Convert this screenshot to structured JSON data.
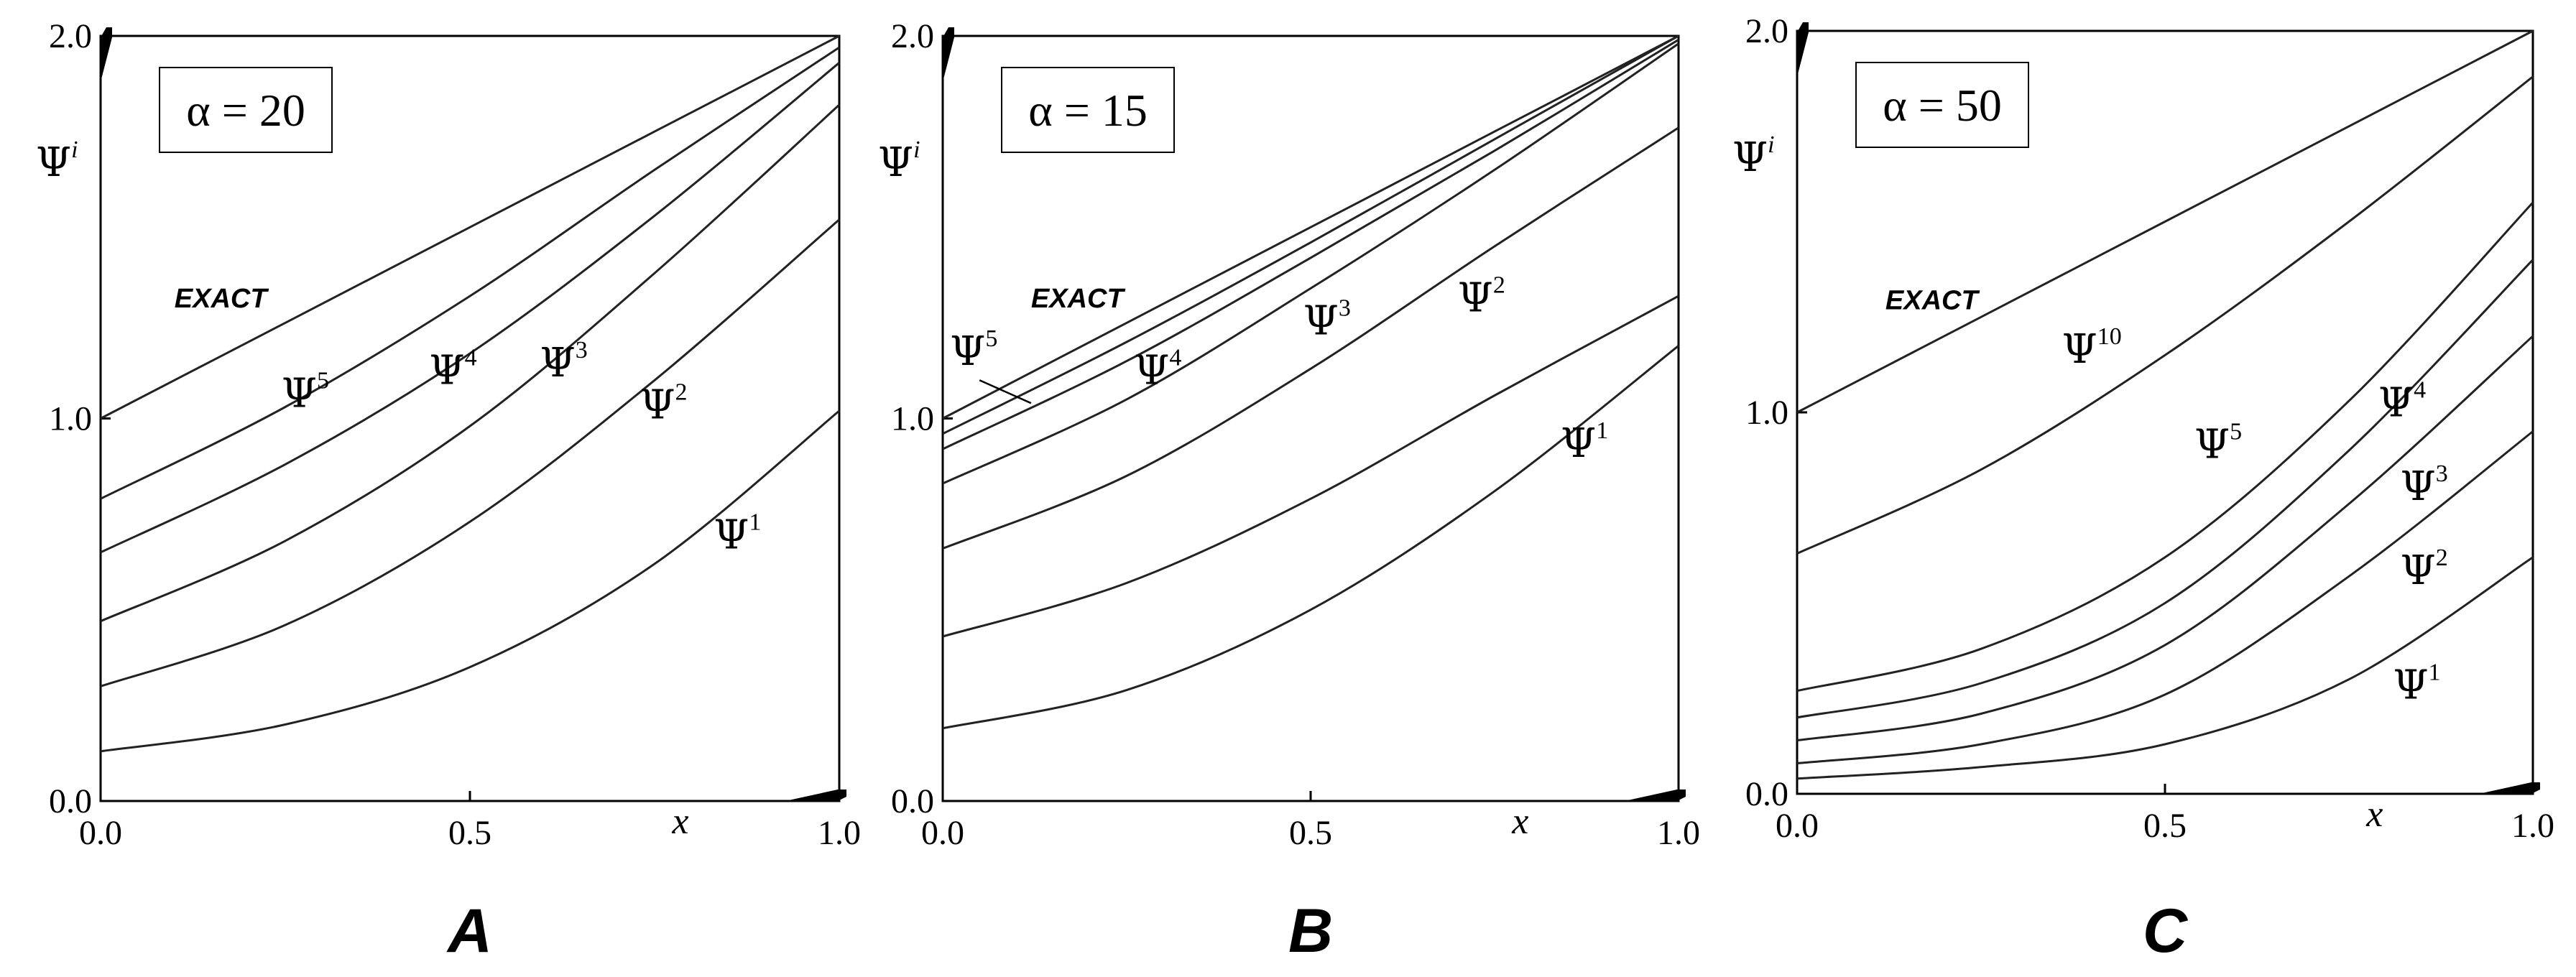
{
  "chart_data": [
    {
      "type": "line",
      "panel_label": "A",
      "annotation": "α = 20",
      "xlabel": "x",
      "ylabel": {
        "base": "Ψ",
        "sup": "i"
      },
      "xlim": [
        0,
        1
      ],
      "ylim": [
        0,
        2
      ],
      "xticks": [
        "0.0",
        "0.5",
        "1.0"
      ],
      "yticks": [
        "0.0",
        "1.0",
        "2.0"
      ],
      "series": [
        {
          "name": "EXACT",
          "x": [
            0,
            0.25,
            0.5,
            0.75,
            1
          ],
          "y": [
            1.0,
            1.25,
            1.5,
            1.75,
            2.0
          ]
        },
        {
          "name": "Ψ5",
          "x": [
            0,
            0.25,
            0.5,
            0.75,
            1
          ],
          "y": [
            0.79,
            1.03,
            1.32,
            1.65,
            1.97
          ]
        },
        {
          "name": "Ψ4",
          "x": [
            0,
            0.25,
            0.5,
            0.75,
            1
          ],
          "y": [
            0.65,
            0.88,
            1.17,
            1.53,
            1.93
          ]
        },
        {
          "name": "Ψ3",
          "x": [
            0,
            0.25,
            0.5,
            0.75,
            1
          ],
          "y": [
            0.47,
            0.68,
            0.98,
            1.38,
            1.82
          ]
        },
        {
          "name": "Ψ2",
          "x": [
            0,
            0.25,
            0.5,
            0.75,
            1
          ],
          "y": [
            0.3,
            0.46,
            0.73,
            1.1,
            1.52
          ]
        },
        {
          "name": "Ψ1",
          "x": [
            0,
            0.25,
            0.5,
            0.75,
            1
          ],
          "y": [
            0.13,
            0.2,
            0.35,
            0.62,
            1.02
          ]
        }
      ],
      "labels": [
        {
          "text": "EXACT",
          "kind": "exact",
          "at": [
            0.1,
            1.29
          ]
        },
        {
          "base": "Ψ",
          "sup": "5",
          "at": [
            0.245,
            1.03
          ]
        },
        {
          "base": "Ψ",
          "sup": "4",
          "at": [
            0.445,
            1.09
          ]
        },
        {
          "base": "Ψ",
          "sup": "3",
          "at": [
            0.595,
            1.11
          ]
        },
        {
          "base": "Ψ",
          "sup": "2",
          "at": [
            0.73,
            1.0
          ]
        },
        {
          "base": "Ψ",
          "sup": "1",
          "at": [
            0.83,
            0.66
          ]
        }
      ]
    },
    {
      "type": "line",
      "panel_label": "B",
      "annotation": "α = 15",
      "xlabel": "x",
      "ylabel": {
        "base": "Ψ",
        "sup": "i"
      },
      "xlim": [
        0,
        1
      ],
      "ylim": [
        0,
        2
      ],
      "xticks": [
        "0.0",
        "0.5",
        "1.0"
      ],
      "yticks": [
        "0.0",
        "1.0",
        "2.0"
      ],
      "series": [
        {
          "name": "EXACT",
          "x": [
            0,
            0.25,
            0.5,
            0.75,
            1
          ],
          "y": [
            1.0,
            1.25,
            1.5,
            1.75,
            2.0
          ]
        },
        {
          "name": "Ψ5",
          "x": [
            0,
            0.25,
            0.5,
            0.75,
            1
          ],
          "y": [
            0.96,
            1.2,
            1.46,
            1.73,
            2.0
          ]
        },
        {
          "name": "Ψ4",
          "x": [
            0,
            0.25,
            0.5,
            0.75,
            1
          ],
          "y": [
            0.92,
            1.15,
            1.42,
            1.7,
            1.99
          ]
        },
        {
          "name": "Ψ3",
          "x": [
            0,
            0.25,
            0.5,
            0.75,
            1
          ],
          "y": [
            0.83,
            1.05,
            1.34,
            1.65,
            1.98
          ]
        },
        {
          "name": "Ψ2",
          "x": [
            0,
            0.25,
            0.5,
            0.75,
            1
          ],
          "y": [
            0.66,
            0.85,
            1.13,
            1.45,
            1.76
          ]
        },
        {
          "name": "Ψ1",
          "x": [
            0,
            0.25,
            0.5,
            0.75,
            1
          ],
          "y": [
            0.43,
            0.57,
            0.79,
            1.06,
            1.32
          ]
        },
        {
          "name": "",
          "x": [
            0,
            0.25,
            0.5,
            0.75,
            1
          ],
          "y": [
            0.19,
            0.29,
            0.5,
            0.81,
            1.19
          ]
        }
      ],
      "labels": [
        {
          "text": "EXACT",
          "kind": "exact",
          "at": [
            0.12,
            1.29
          ]
        },
        {
          "base": "Ψ",
          "sup": "5",
          "at": [
            0.01,
            1.14
          ]
        },
        {
          "base": "Ψ",
          "sup": "4",
          "at": [
            0.26,
            1.09
          ]
        },
        {
          "base": "Ψ",
          "sup": "3",
          "at": [
            0.49,
            1.22
          ]
        },
        {
          "base": "Ψ",
          "sup": "2",
          "at": [
            0.7,
            1.28
          ]
        },
        {
          "base": "Ψ",
          "sup": "1",
          "at": [
            0.84,
            0.9
          ]
        }
      ]
    },
    {
      "type": "line",
      "panel_label": "C",
      "annotation": "α = 50",
      "xlabel": "x",
      "ylabel": {
        "base": "Ψ",
        "sup": "i"
      },
      "xlim": [
        0,
        1
      ],
      "ylim": [
        0,
        2
      ],
      "xticks": [
        "0.0",
        "0.5",
        "1.0"
      ],
      "yticks": [
        "0.0",
        "1.0",
        "2.0"
      ],
      "series": [
        {
          "name": "EXACT",
          "x": [
            0,
            0.25,
            0.5,
            0.75,
            1
          ],
          "y": [
            1.0,
            1.25,
            1.5,
            1.75,
            2.0
          ]
        },
        {
          "name": "Ψ10",
          "x": [
            0,
            0.25,
            0.5,
            0.75,
            1
          ],
          "y": [
            0.63,
            0.85,
            1.15,
            1.5,
            1.88
          ]
        },
        {
          "name": "Ψ5",
          "x": [
            0,
            0.25,
            0.5,
            0.75,
            1
          ],
          "y": [
            0.27,
            0.38,
            0.62,
            1.03,
            1.55
          ]
        },
        {
          "name": "Ψ4",
          "x": [
            0,
            0.25,
            0.5,
            0.75,
            1
          ],
          "y": [
            0.2,
            0.29,
            0.5,
            0.9,
            1.4
          ]
        },
        {
          "name": "Ψ3",
          "x": [
            0,
            0.25,
            0.5,
            0.75,
            1
          ],
          "y": [
            0.14,
            0.21,
            0.39,
            0.76,
            1.2
          ]
        },
        {
          "name": "Ψ2",
          "x": [
            0,
            0.25,
            0.5,
            0.75,
            1
          ],
          "y": [
            0.08,
            0.13,
            0.26,
            0.57,
            0.95
          ]
        },
        {
          "name": "Ψ1",
          "x": [
            0,
            0.25,
            0.5,
            0.75,
            1
          ],
          "y": [
            0.04,
            0.07,
            0.13,
            0.3,
            0.62
          ]
        }
      ],
      "labels": [
        {
          "text": "EXACT",
          "kind": "exact",
          "at": [
            0.12,
            1.27
          ]
        },
        {
          "base": "Ψ",
          "sup": "10",
          "at": [
            0.36,
            1.13
          ]
        },
        {
          "base": "Ψ",
          "sup": "5",
          "at": [
            0.54,
            0.88
          ]
        },
        {
          "base": "Ψ",
          "sup": "4",
          "at": [
            0.79,
            0.99
          ]
        },
        {
          "base": "Ψ",
          "sup": "3",
          "at": [
            0.82,
            0.77
          ]
        },
        {
          "base": "Ψ",
          "sup": "2",
          "at": [
            0.82,
            0.55
          ]
        },
        {
          "base": "Ψ",
          "sup": "1",
          "at": [
            0.81,
            0.25
          ]
        }
      ]
    }
  ]
}
